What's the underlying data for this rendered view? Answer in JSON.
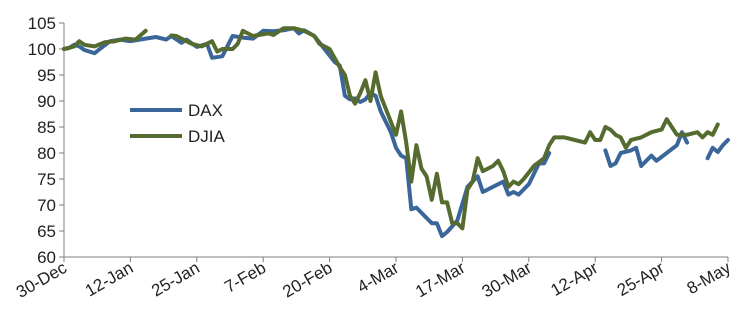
{
  "chart_data": {
    "type": "line",
    "title": "",
    "xlabel": "",
    "ylabel": "",
    "ylim": [
      60,
      105
    ],
    "yticks": [
      60,
      65,
      70,
      75,
      80,
      85,
      90,
      95,
      100,
      105
    ],
    "y_tick_labels": [
      "60",
      "65",
      "70",
      "75",
      "80",
      "85",
      "90",
      "95",
      "100",
      "105"
    ],
    "x_tick_labels": [
      "30-Dec",
      "12-Jan",
      "25-Jan",
      "7-Feb",
      "20-Feb",
      "4-Mar",
      "17-Mar",
      "30-Mar",
      "12-Apr",
      "25-Apr",
      "8-May"
    ],
    "x_tick_positions": [
      0,
      13,
      26,
      39,
      52,
      65,
      78,
      91,
      104,
      117,
      130
    ],
    "x_range": [
      0,
      130
    ],
    "grid": false,
    "legend_position": "left-middle",
    "series": [
      {
        "name": "DAX",
        "color": "#3b6699",
        "points": [
          [
            0,
            100
          ],
          [
            1,
            100.2
          ],
          [
            2,
            100.8
          ],
          [
            3,
            100.5
          ],
          [
            4,
            99.8
          ],
          [
            6,
            99.2
          ],
          [
            7,
            100
          ],
          [
            9,
            101.5
          ],
          [
            11,
            101.8
          ],
          [
            13,
            101.5
          ],
          [
            16,
            102
          ],
          [
            18,
            102.3
          ],
          [
            20,
            101.8
          ],
          [
            21,
            102.5
          ],
          [
            23,
            101.2
          ],
          [
            24,
            101.8
          ],
          [
            26,
            100.4
          ],
          [
            28,
            101
          ],
          [
            29,
            98.3
          ],
          [
            31,
            98.6
          ],
          [
            33,
            102.5
          ],
          [
            35,
            102.2
          ],
          [
            37,
            102
          ],
          [
            39,
            103.5
          ],
          [
            41,
            103.4
          ],
          [
            43,
            103.6
          ],
          [
            45,
            104
          ],
          [
            46,
            103
          ],
          [
            47,
            103.6
          ],
          [
            49,
            102.5
          ],
          [
            51,
            100
          ],
          [
            53,
            97.5
          ],
          [
            54,
            96.8
          ],
          [
            55,
            91
          ],
          [
            56,
            90.3
          ],
          [
            57,
            90.5
          ],
          [
            58,
            89.8
          ],
          [
            59,
            90.3
          ],
          [
            60,
            91.5
          ],
          [
            61,
            91
          ],
          [
            62,
            88
          ],
          [
            64,
            84
          ],
          [
            65,
            81
          ],
          [
            66,
            79.5
          ],
          [
            67,
            79
          ],
          [
            68,
            69.2
          ],
          [
            69,
            69.5
          ],
          [
            71,
            67.5
          ],
          [
            72,
            66.5
          ],
          [
            73,
            66.5
          ],
          [
            74,
            64
          ],
          [
            75,
            64.8
          ],
          [
            77,
            67
          ],
          [
            79,
            73.5
          ],
          [
            81,
            75.5
          ],
          [
            82,
            72.5
          ],
          [
            84,
            73.5
          ],
          [
            86,
            74.5
          ],
          [
            87,
            72
          ],
          [
            88,
            72.5
          ],
          [
            89,
            72
          ],
          [
            91,
            74
          ],
          [
            93,
            78
          ],
          [
            94,
            78
          ],
          [
            95,
            80
          ],
          null,
          [
            106,
            80.5
          ],
          [
            107,
            77.5
          ],
          [
            108,
            78
          ],
          [
            109,
            80
          ],
          [
            111,
            80.5
          ],
          [
            112,
            81
          ],
          [
            113,
            77.5
          ],
          [
            114,
            78.5
          ],
          [
            115,
            79.5
          ],
          [
            116,
            78.5
          ],
          [
            118,
            80
          ],
          [
            120,
            81.5
          ],
          [
            121,
            84
          ],
          [
            122,
            82
          ],
          null,
          [
            126,
            79
          ],
          [
            127,
            81
          ],
          [
            128,
            80.2
          ],
          [
            129,
            81.5
          ],
          [
            130,
            82.5
          ]
        ]
      },
      {
        "name": "DJIA",
        "color": "#556b2f",
        "points": [
          [
            0,
            100
          ],
          [
            2,
            100.5
          ],
          [
            3,
            101.5
          ],
          [
            4,
            100.8
          ],
          [
            6,
            100.5
          ],
          [
            8,
            101.3
          ],
          [
            10,
            101.5
          ],
          [
            12,
            102
          ],
          [
            14,
            101.8
          ],
          [
            16,
            103.5
          ],
          null,
          [
            21,
            102.6
          ],
          [
            22,
            102.5
          ],
          [
            23,
            102
          ],
          [
            25,
            101
          ],
          [
            27,
            100.5
          ],
          [
            29,
            101.5
          ],
          [
            30,
            99.5
          ],
          [
            31,
            100
          ],
          [
            33,
            100
          ],
          [
            34,
            101
          ],
          [
            35,
            103.5
          ],
          [
            37,
            102.5
          ],
          [
            40,
            103
          ],
          [
            41,
            102.7
          ],
          [
            43,
            104
          ],
          [
            44,
            104
          ],
          [
            45,
            104
          ],
          [
            47,
            103.5
          ],
          [
            49,
            102.5
          ],
          [
            50,
            101
          ],
          [
            52,
            100
          ],
          [
            54,
            96.5
          ],
          [
            55,
            95
          ],
          [
            56,
            91
          ],
          [
            57,
            89.5
          ],
          [
            58,
            91.5
          ],
          [
            59,
            94
          ],
          [
            60,
            90
          ],
          [
            61,
            95.5
          ],
          [
            62,
            91
          ],
          [
            64,
            86
          ],
          [
            65,
            83.5
          ],
          [
            66,
            88
          ],
          [
            67,
            82
          ],
          [
            68,
            74.5
          ],
          [
            69,
            81.5
          ],
          [
            70,
            77
          ],
          [
            71,
            75.5
          ],
          [
            72,
            71
          ],
          [
            73,
            76
          ],
          [
            74,
            70.5
          ],
          [
            75,
            70.5
          ],
          [
            76,
            66.5
          ],
          [
            77,
            66.5
          ],
          [
            78,
            65.5
          ],
          [
            79,
            73
          ],
          [
            80,
            74.5
          ],
          [
            81,
            79
          ],
          [
            82,
            76.5
          ],
          [
            84,
            77.5
          ],
          [
            85,
            78.5
          ],
          [
            86,
            76.5
          ],
          [
            87,
            73.5
          ],
          [
            88,
            74.5
          ],
          [
            89,
            74
          ],
          [
            90,
            75
          ],
          [
            92,
            77.5
          ],
          [
            94,
            79
          ],
          [
            95,
            81.5
          ],
          [
            96,
            83
          ],
          [
            98,
            83
          ],
          [
            100,
            82.5
          ],
          [
            102,
            82
          ],
          [
            103,
            84
          ],
          [
            104,
            82.5
          ],
          [
            105,
            82.5
          ],
          [
            106,
            85
          ],
          [
            107,
            84.5
          ],
          [
            108,
            83.5
          ],
          [
            109,
            83
          ],
          [
            110,
            81
          ],
          [
            111,
            82.5
          ],
          [
            113,
            83
          ],
          [
            115,
            84
          ],
          [
            117,
            84.5
          ],
          [
            118,
            86.5
          ],
          [
            119,
            85
          ],
          [
            120,
            83.5
          ],
          [
            122,
            83.5
          ],
          [
            124,
            84
          ],
          [
            125,
            83
          ],
          [
            126,
            84
          ],
          [
            127,
            83.5
          ],
          [
            128,
            85.5
          ]
        ]
      }
    ]
  }
}
